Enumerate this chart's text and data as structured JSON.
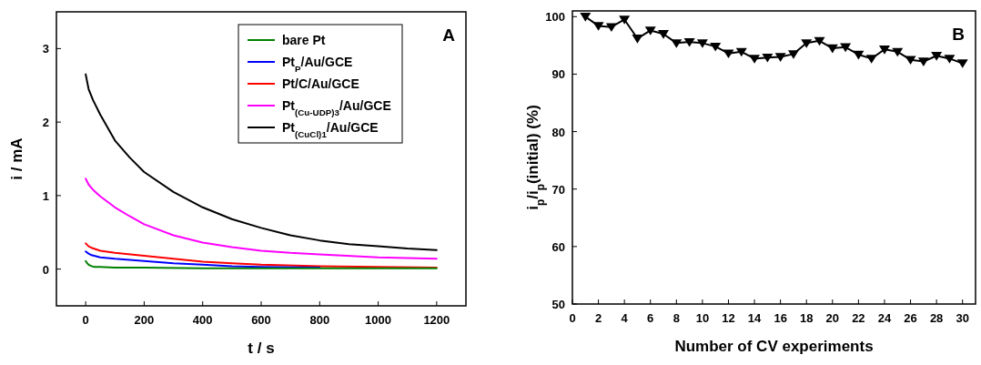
{
  "chart_data": [
    {
      "type": "line",
      "xlabel": "t / s",
      "ylabel": "i / mA",
      "xlim": [
        -100,
        1300
      ],
      "ylim": [
        -0.5,
        3.5
      ],
      "xticks": [
        0,
        200,
        400,
        600,
        800,
        1000,
        1200
      ],
      "yticks": [
        0,
        1,
        2,
        3
      ],
      "grid": false,
      "legend": "top right",
      "marker": "none",
      "annotations": [
        "A"
      ],
      "series": [
        {
          "name": "bare Pt",
          "color": "#008000",
          "x": [
            0,
            5,
            10,
            20,
            30,
            50,
            100,
            200,
            400,
            600,
            800,
            1000,
            1200
          ],
          "values": [
            0.11,
            0.08,
            0.06,
            0.04,
            0.03,
            0.03,
            0.02,
            0.02,
            0.01,
            0.01,
            0.01,
            0.01,
            0.01
          ]
        },
        {
          "name": "Pt$_{P}$/Au/GCE",
          "color": "#0000ff",
          "x": [
            0,
            10,
            20,
            50,
            100,
            200,
            300,
            400,
            500,
            600,
            800
          ],
          "values": [
            0.24,
            0.21,
            0.19,
            0.16,
            0.14,
            0.11,
            0.08,
            0.06,
            0.04,
            0.03,
            0.02
          ]
        },
        {
          "name": "Pt/C/Au/GCE",
          "color": "#ff0000",
          "x": [
            0,
            10,
            20,
            50,
            100,
            200,
            300,
            400,
            500,
            600,
            800,
            1000,
            1200
          ],
          "values": [
            0.35,
            0.31,
            0.29,
            0.25,
            0.22,
            0.18,
            0.14,
            0.1,
            0.08,
            0.06,
            0.04,
            0.03,
            0.02
          ]
        },
        {
          "name": "Pt$_{(Cu-UDP)3}$/Au/GCE",
          "color": "#ff00ff",
          "x": [
            0,
            10,
            25,
            50,
            100,
            150,
            200,
            300,
            400,
            500,
            600,
            700,
            800,
            1000,
            1200
          ],
          "values": [
            1.23,
            1.15,
            1.08,
            0.99,
            0.84,
            0.72,
            0.61,
            0.46,
            0.36,
            0.3,
            0.25,
            0.22,
            0.2,
            0.16,
            0.14
          ]
        },
        {
          "name": "Pt$_{(CuCl)1}$/Au/GCE",
          "color": "#000000",
          "x": [
            0,
            10,
            25,
            50,
            100,
            150,
            200,
            300,
            400,
            500,
            600,
            700,
            800,
            900,
            1000,
            1100,
            1200
          ],
          "values": [
            2.65,
            2.45,
            2.3,
            2.1,
            1.75,
            1.52,
            1.32,
            1.05,
            0.84,
            0.68,
            0.56,
            0.46,
            0.39,
            0.34,
            0.31,
            0.28,
            0.26
          ]
        }
      ]
    },
    {
      "type": "line",
      "xlabel": "Number of CV experiments",
      "ylabel": "i$_{p}$/i$_{p}$(initial) (%)",
      "xlim": [
        0,
        31
      ],
      "ylim": [
        50,
        101
      ],
      "xticks": [
        0,
        2,
        4,
        6,
        8,
        10,
        12,
        14,
        16,
        18,
        20,
        22,
        24,
        26,
        28,
        30
      ],
      "yticks": [
        50,
        60,
        70,
        80,
        90,
        100
      ],
      "grid": false,
      "marker": "triangle",
      "annotations": [
        "B"
      ],
      "series": [
        {
          "color": "#000000",
          "x": [
            1,
            2,
            3,
            4,
            5,
            6,
            7,
            8,
            9,
            10,
            11,
            12,
            13,
            14,
            15,
            16,
            17,
            18,
            19,
            20,
            21,
            22,
            23,
            24,
            25,
            26,
            27,
            28,
            29,
            30
          ],
          "values": [
            100,
            98.4,
            98.2,
            99.5,
            96.2,
            97.6,
            97.0,
            95.4,
            95.6,
            95.4,
            94.8,
            93.6,
            93.9,
            92.7,
            92.9,
            93.0,
            93.5,
            95.4,
            95.8,
            94.5,
            94.7,
            93.4,
            92.7,
            94.3,
            93.9,
            92.5,
            92.2,
            93.2,
            92.7,
            91.9
          ]
        }
      ]
    }
  ]
}
